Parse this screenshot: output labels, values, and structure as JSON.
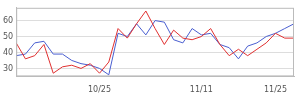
{
  "chart_data": {
    "type": "line",
    "categories": [
      null,
      null,
      null,
      null,
      null,
      null,
      null,
      null,
      null,
      "10/25",
      null,
      null,
      null,
      null,
      null,
      null,
      null,
      null,
      null,
      null,
      "11/11",
      null,
      null,
      null,
      null,
      null,
      null,
      null,
      "11/25",
      null,
      null
    ],
    "series": [
      {
        "color": "#e03131",
        "values": [
          46,
          36,
          38,
          45,
          27,
          31,
          32,
          30,
          33,
          27,
          34,
          55,
          49,
          58,
          66,
          55,
          45,
          54,
          49,
          48,
          50,
          55,
          45,
          38,
          42,
          38,
          42,
          46,
          52,
          49,
          49
        ]
      },
      {
        "color": "#4a5fd0",
        "values": [
          38,
          39,
          46,
          47,
          39,
          39,
          35,
          33,
          32,
          30,
          26,
          52,
          50,
          58,
          51,
          60,
          59,
          48,
          46,
          55,
          51,
          52,
          45,
          43,
          36,
          44,
          46,
          50,
          52,
          55,
          58
        ]
      }
    ],
    "ylim": [
      25,
      68
    ],
    "yticks": [
      30,
      40,
      50,
      60
    ],
    "grid": true
  }
}
